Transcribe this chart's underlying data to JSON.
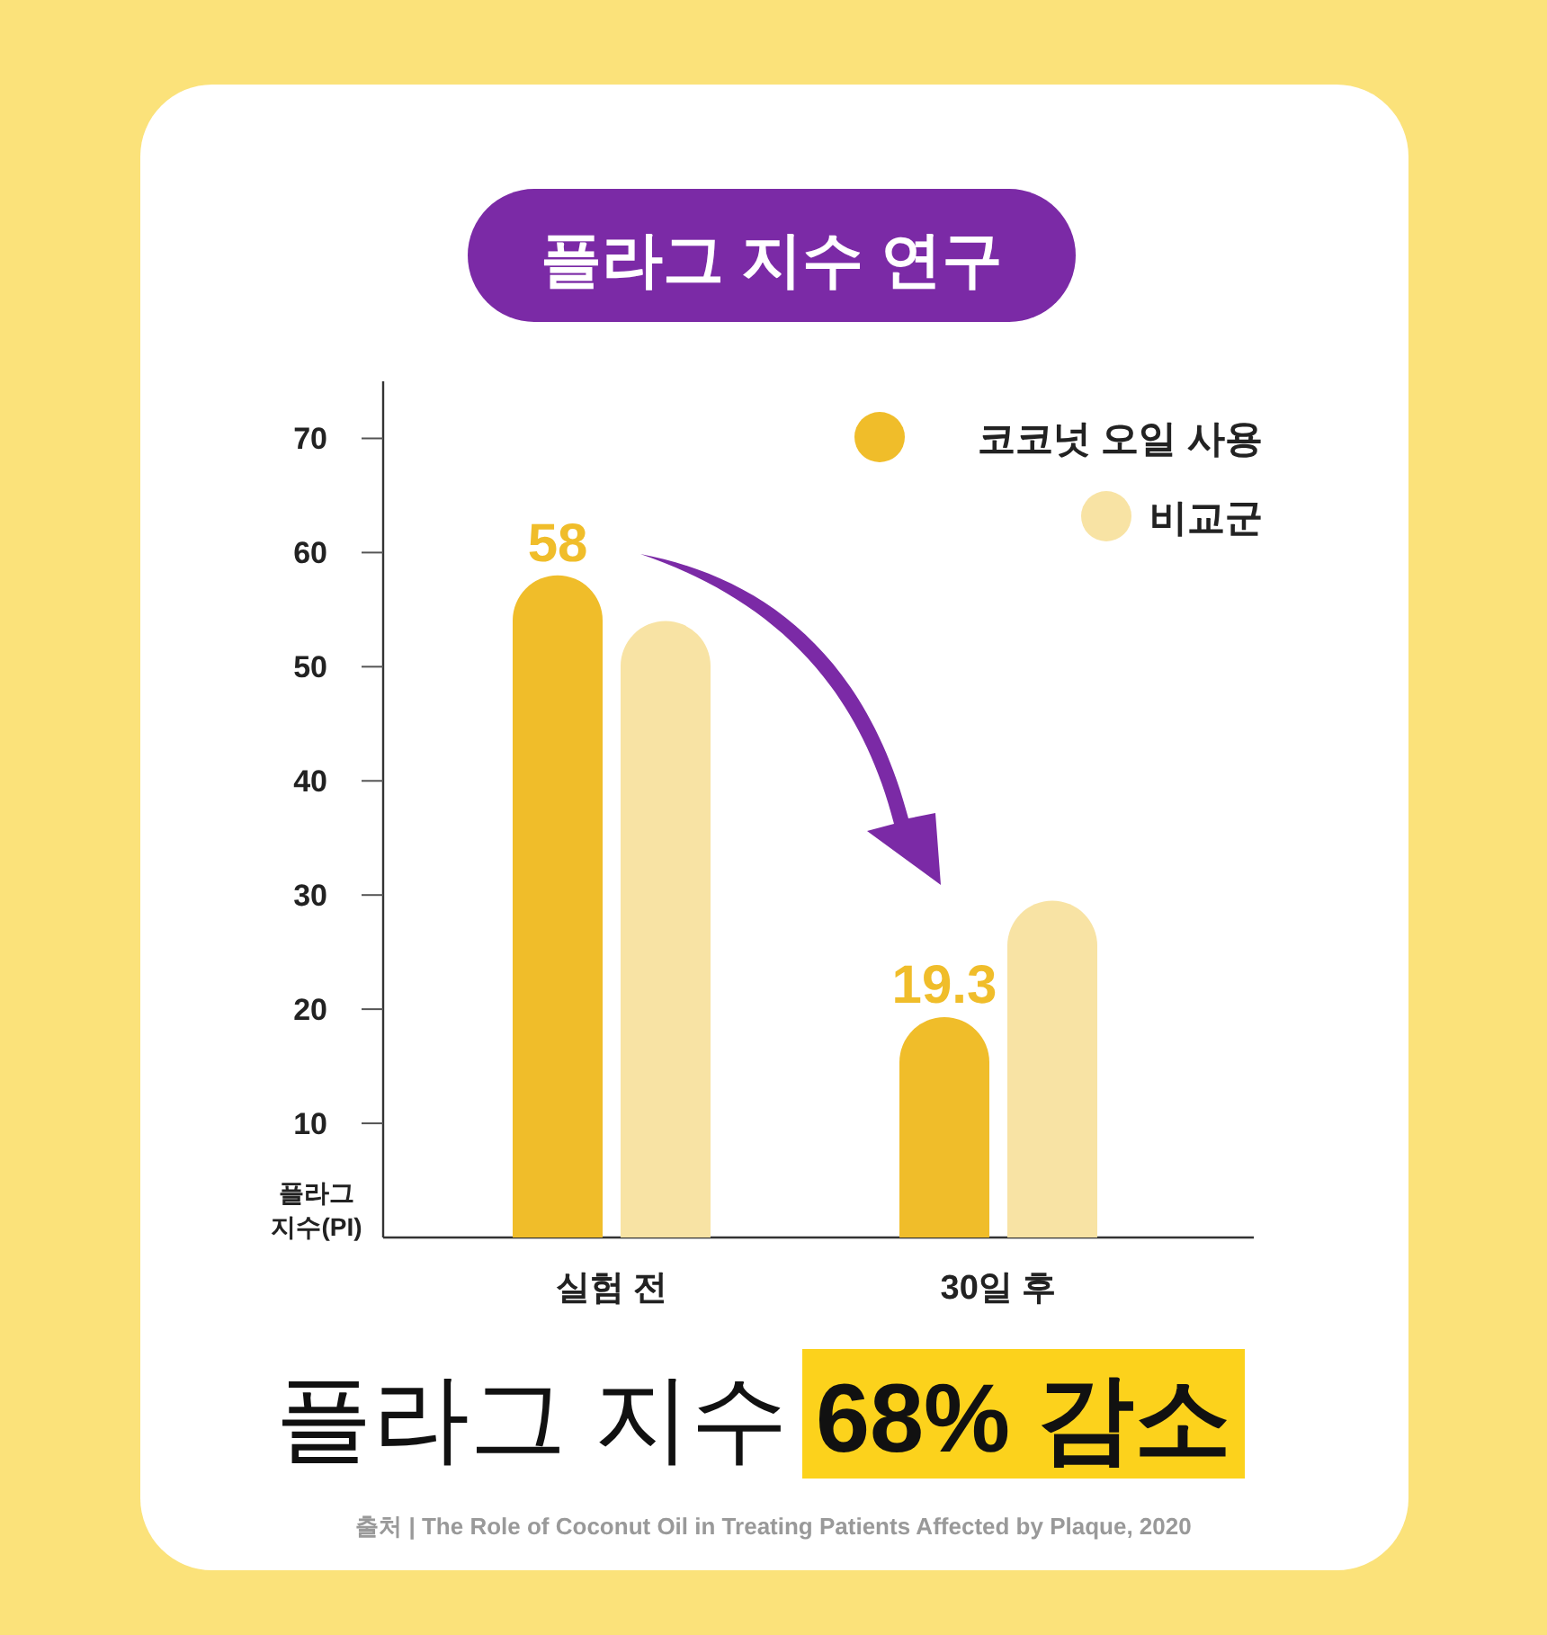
{
  "chart_data": {
    "type": "bar",
    "title": "플라그 지수 연구",
    "ylabel": "플라그 지수(PI)",
    "categories": [
      "실험 전",
      "30일 후"
    ],
    "series": [
      {
        "name": "코코넛 오일 사용",
        "color": "#f0bd2a",
        "values": [
          58,
          19.3
        ],
        "value_labels": [
          "58",
          "19.3"
        ]
      },
      {
        "name": "비교군",
        "color": "#f8e3a4",
        "values": [
          54,
          29.5
        ]
      }
    ],
    "ylim": [
      0,
      75
    ],
    "yticks": [
      10,
      20,
      30,
      40,
      50,
      60,
      70
    ],
    "legend": "top right",
    "grid": false,
    "annotations": [
      "플라그 지수",
      "68% 감소",
      "출처 | The Role of Coconut Oil in Treating Patients Affected by Plaque, 2020"
    ]
  }
}
